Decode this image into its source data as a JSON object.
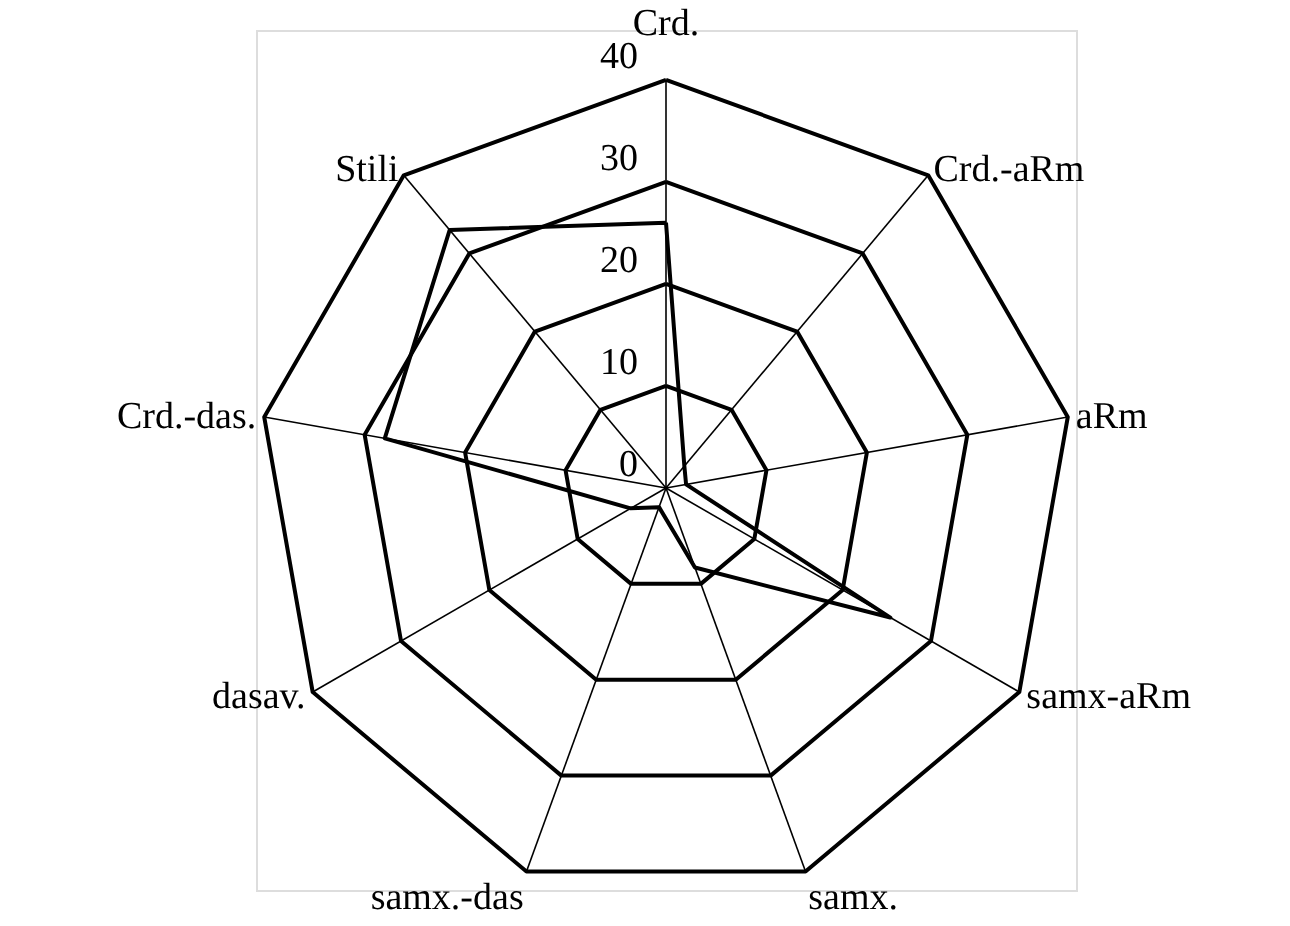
{
  "chart_data": {
    "type": "radar",
    "categories": [
      "Crd.",
      "Crd.-aRm",
      "aRm",
      "samx-aRm",
      "samx.",
      "samx.-das",
      "dasav.",
      "Crd.-das.",
      "Stili"
    ],
    "series": [
      {
        "color": "#000000",
        "values": [
          26,
          2.8,
          2,
          25.4,
          8.3,
          2,
          4,
          28,
          33
        ]
      }
    ],
    "ylim": [
      0,
      40
    ],
    "yticks": [
      0,
      10,
      20,
      30,
      40
    ],
    "grid": true,
    "marker": "none",
    "line_style": "solid"
  }
}
